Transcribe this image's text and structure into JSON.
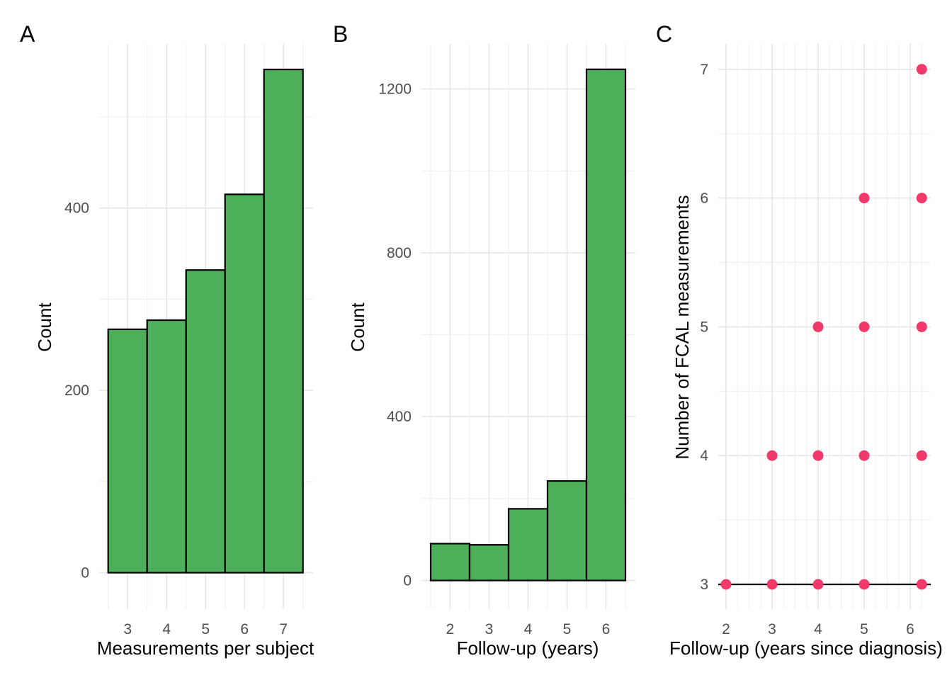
{
  "chart_data": [
    {
      "panel": "A",
      "type": "bar",
      "xlabel": "Measurements per subject",
      "ylabel": "Count",
      "categories": [
        "3",
        "4",
        "5",
        "6",
        "7"
      ],
      "values": [
        267,
        277,
        332,
        415,
        552
      ],
      "x_ticks": [
        "3",
        "4",
        "5",
        "6",
        "7"
      ],
      "y_ticks": [
        "0",
        "200",
        "400"
      ],
      "ylim": [
        -40,
        580
      ],
      "bar_fill": "#4daf5a",
      "bar_stroke": "#000000",
      "grid": true
    },
    {
      "panel": "B",
      "type": "bar",
      "xlabel": "Follow-up (years)",
      "ylabel": "Count",
      "categories": [
        "2",
        "3",
        "4",
        "5",
        "6"
      ],
      "values": [
        90,
        87,
        175,
        243,
        1248
      ],
      "x_ticks": [
        "2",
        "3",
        "4",
        "5",
        "6"
      ],
      "y_ticks": [
        "0",
        "400",
        "800",
        "1200"
      ],
      "ylim": [
        -70,
        1310
      ],
      "bar_fill": "#4daf5a",
      "bar_stroke": "#000000",
      "grid": true
    },
    {
      "panel": "C",
      "type": "scatter",
      "xlabel": "Follow-up (years since diagnosis)",
      "ylabel": "Number of FCAL measurements",
      "x_ticks": [
        "2",
        "3",
        "4",
        "5",
        "6"
      ],
      "y_ticks": [
        "3",
        "4",
        "5",
        "6",
        "7"
      ],
      "points": [
        {
          "x": 2,
          "y": 3
        },
        {
          "x": 3,
          "y": 3
        },
        {
          "x": 4,
          "y": 3
        },
        {
          "x": 5,
          "y": 3
        },
        {
          "x": 6.25,
          "y": 3
        },
        {
          "x": 3,
          "y": 4
        },
        {
          "x": 4,
          "y": 4
        },
        {
          "x": 5,
          "y": 4
        },
        {
          "x": 6.25,
          "y": 4
        },
        {
          "x": 4,
          "y": 5
        },
        {
          "x": 5,
          "y": 5
        },
        {
          "x": 6.25,
          "y": 5
        },
        {
          "x": 5,
          "y": 6
        },
        {
          "x": 6.25,
          "y": 6
        },
        {
          "x": 6.25,
          "y": 7
        }
      ],
      "hline_y": 3,
      "point_color": "#f23a6a",
      "xlim": [
        1.95,
        6.45
      ],
      "ylim": [
        2.85,
        7.2
      ],
      "grid": true
    }
  ]
}
